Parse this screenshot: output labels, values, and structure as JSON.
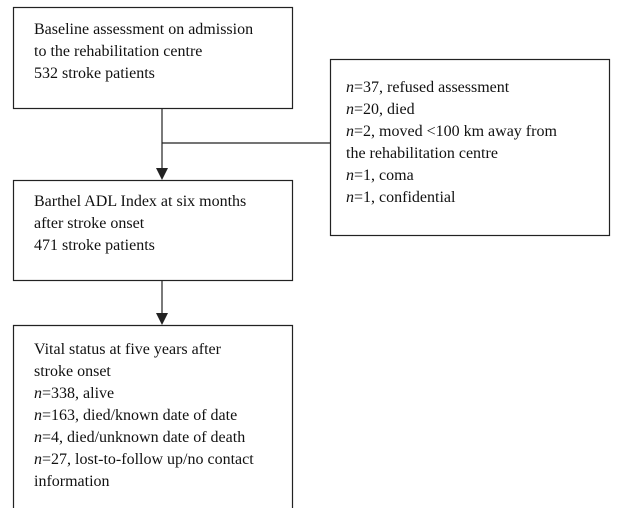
{
  "nodes": [
    {
      "lines": [
        "Baseline assessment on admission",
        "to the rehabilitation centre",
        "532 stroke patients"
      ]
    },
    {
      "lines": [
        "n=37, refused assessment",
        "n=20, died",
        "n=2, moved <100 km away from",
        "the rehabilitation centre",
        "n=1, coma",
        "n=1, confidential"
      ]
    },
    {
      "lines": [
        "Barthel ADL Index at six months",
        "after stroke onset",
        "471 stroke patients"
      ]
    },
    {
      "lines": [
        "Vital status at five years after",
        "stroke onset",
        "n=338, alive",
        "n=163, died/known date of date",
        "n=4, died/unknown date of death",
        "n=27, lost-to-follow up/no contact",
        "information"
      ]
    }
  ]
}
